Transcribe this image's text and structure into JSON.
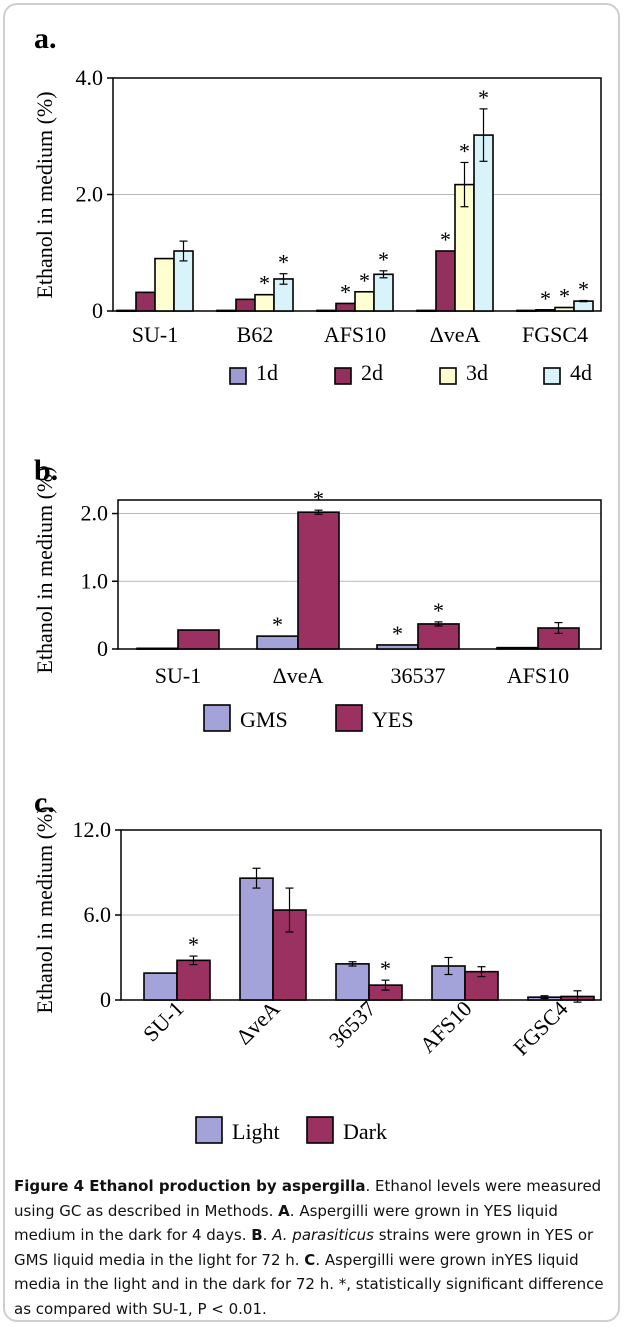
{
  "chart_data": [
    {
      "panel": "a.",
      "type": "bar",
      "ylabel": "Ethanol in medium (%)",
      "ylim": [
        0,
        4.0
      ],
      "yticks": [
        "4.0",
        "2.0",
        "0"
      ],
      "categories": [
        "SU-1",
        "B62",
        "AFS10",
        "ΔveA",
        "FGSC4"
      ],
      "series": [
        {
          "name": "1d",
          "values": [
            0.01,
            0.01,
            0.01,
            0.01,
            0.01
          ],
          "errors": [
            0,
            0,
            0,
            0,
            0
          ]
        },
        {
          "name": "2d",
          "values": [
            0.32,
            0.2,
            0.13,
            1.03,
            0.02
          ],
          "errors": [
            0,
            0,
            0,
            0,
            0
          ]
        },
        {
          "name": "3d",
          "values": [
            0.9,
            0.28,
            0.33,
            2.17,
            0.06
          ],
          "errors": [
            0,
            0,
            0,
            0.38,
            0
          ]
        },
        {
          "name": "4d",
          "values": [
            1.03,
            0.55,
            0.63,
            3.02,
            0.17
          ],
          "errors": [
            0.17,
            0.09,
            0.06,
            0.45,
            0.01
          ]
        }
      ],
      "stars": [
        [
          false,
          false,
          false,
          false
        ],
        [
          false,
          false,
          true,
          true
        ],
        [
          false,
          true,
          true,
          true
        ],
        [
          false,
          true,
          true,
          true
        ],
        [
          false,
          true,
          true,
          true
        ]
      ],
      "legend_position": "bottom",
      "colors": [
        "#9e9cd3",
        "#94305e",
        "#fefed0",
        "#d8f4fa"
      ]
    },
    {
      "panel": "b.",
      "type": "bar",
      "ylabel": "Ethanol in medium (%)",
      "ylim": [
        0,
        2.2
      ],
      "yticks": [
        "2.0",
        "1.0",
        "0"
      ],
      "categories": [
        "SU-1",
        "ΔveA",
        "36537",
        "AFS10"
      ],
      "series": [
        {
          "name": "GMS",
          "values": [
            0.01,
            0.19,
            0.06,
            0.02
          ],
          "errors": [
            0,
            0,
            0,
            0
          ]
        },
        {
          "name": "YES",
          "values": [
            0.28,
            2.02,
            0.37,
            0.31
          ],
          "errors": [
            0,
            0.03,
            0.03,
            0.08
          ]
        }
      ],
      "stars": [
        [
          false,
          false
        ],
        [
          true,
          true
        ],
        [
          true,
          true
        ],
        [
          false,
          false
        ]
      ],
      "legend_position": "bottom",
      "colors": [
        "#a3a3d9",
        "#9b3160"
      ]
    },
    {
      "panel": "c.",
      "type": "bar",
      "ylabel": "Ethanol in medium (%)",
      "ylim": [
        0,
        12.0
      ],
      "yticks": [
        "12.0",
        "6.0",
        "0"
      ],
      "categories": [
        "SU-1",
        "ΔveA",
        "36537",
        "AFS10",
        "FGSC4"
      ],
      "series": [
        {
          "name": "Light",
          "values": [
            1.9,
            8.6,
            2.55,
            2.4,
            0.2
          ],
          "errors": [
            0,
            0.7,
            0.15,
            0.6,
            0.1
          ]
        },
        {
          "name": "Dark",
          "values": [
            2.8,
            6.35,
            1.05,
            2.0,
            0.25
          ],
          "errors": [
            0.3,
            1.55,
            0.35,
            0.35,
            0.4
          ]
        }
      ],
      "stars": [
        [
          false,
          true
        ],
        [
          false,
          false
        ],
        [
          false,
          true
        ],
        [
          false,
          false
        ],
        [
          false,
          false
        ]
      ],
      "legend_position": "bottom",
      "colors": [
        "#a3a3d9",
        "#9b3160"
      ]
    }
  ],
  "caption": {
    "title": "Figure 4 Ethanol production by aspergilla",
    "p1": ". Ethanol levels were measured using GC as described in Methods. ",
    "a_label": "A",
    "a_text": ". Aspergilli were grown in YES liquid medium in the dark for 4 days. ",
    "b_label": "B",
    "b_dot": ". ",
    "b_species": "A. parasiticus",
    "b_text": " strains were grown in YES or GMS liquid media in the light for 72 h. ",
    "c_label": "C",
    "c_text": ". Aspergilli were grown inYES liquid media in the light and in the dark for 72 h. *, statistically significant difference as compared with SU-1, P < 0.01."
  }
}
